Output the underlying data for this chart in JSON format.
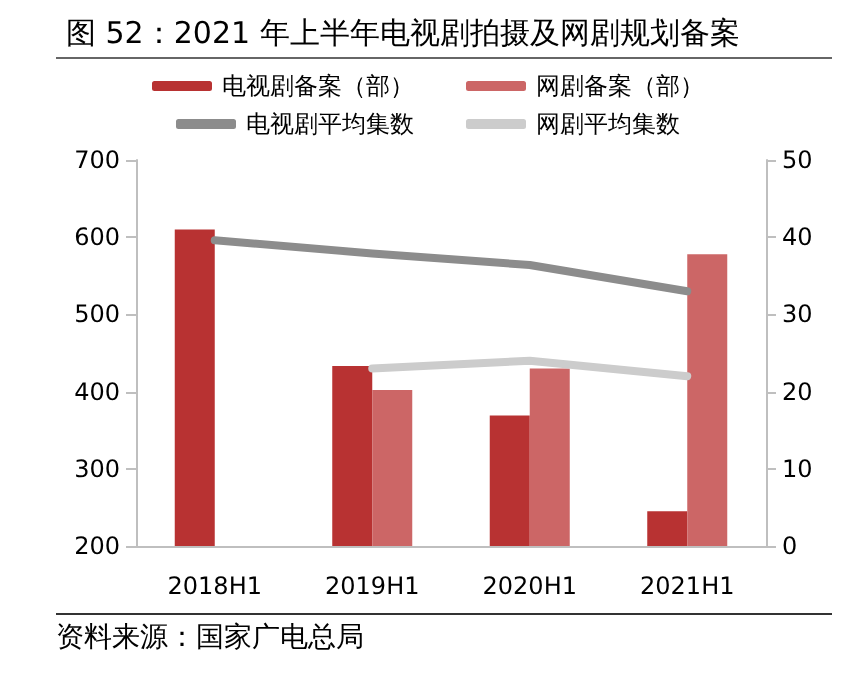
{
  "chart_data": {
    "type": "bar",
    "title": "图 52：2021 年上半年电视剧拍摄及网剧规划备案",
    "categories": [
      "2018H1",
      "2019H1",
      "2020H1",
      "2021H1"
    ],
    "series": [
      {
        "name": "电视剧备案（部）",
        "color": "#b83232",
        "values": [
          610,
          433,
          369,
          245
        ]
      },
      {
        "name": "网剧备案（部）",
        "color": "#cc6666",
        "values": [
          null,
          402,
          430,
          578
        ]
      },
      {
        "name": "电视剧平均集数",
        "type": "line",
        "axis": "y2",
        "color": "#8c8c8c",
        "values": [
          39.6,
          37.9,
          36.4,
          33.0
        ]
      },
      {
        "name": "网剧平均集数",
        "type": "line",
        "axis": "y2",
        "color": "#cccccc",
        "values": [
          null,
          23.0,
          24.0,
          22.0
        ]
      }
    ],
    "ylim": [
      200,
      700
    ],
    "yticks": [
      200,
      300,
      400,
      500,
      600,
      700
    ],
    "y2lim": [
      0,
      50
    ],
    "y2ticks": [
      0,
      10,
      20,
      30,
      40,
      50
    ],
    "legend": "top",
    "grid": false,
    "marker": "none",
    "line_style": "solid",
    "annotations": [
      "资料来源：国家广电总局"
    ]
  }
}
